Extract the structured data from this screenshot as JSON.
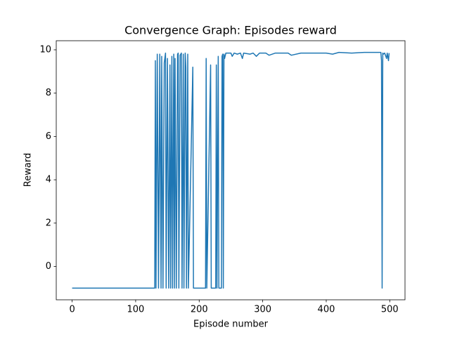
{
  "chart_data": {
    "type": "line",
    "title": "Convergence Graph: Episodes reward",
    "xlabel": "Episode number",
    "ylabel": "Reward",
    "color": "#1f77b4",
    "grid": false,
    "x": [
      0,
      130,
      131,
      132,
      134,
      136,
      138,
      140,
      141,
      143,
      145,
      147,
      148,
      150,
      152,
      154,
      155,
      157,
      158,
      160,
      161,
      162,
      164,
      166,
      167,
      168,
      170,
      172,
      173,
      175,
      176,
      178,
      179,
      180,
      182,
      183,
      190,
      191,
      210,
      211,
      212,
      218,
      219,
      226,
      227,
      228,
      230,
      231,
      235,
      236,
      237,
      238,
      239,
      240,
      242,
      250,
      252,
      255,
      260,
      265,
      268,
      270,
      280,
      285,
      290,
      295,
      305,
      310,
      320,
      340,
      345,
      360,
      400,
      410,
      420,
      440,
      460,
      486,
      487,
      488,
      489,
      490,
      492,
      495,
      496,
      498,
      499
    ],
    "values": [
      -1,
      -1,
      9.5,
      -1,
      9.8,
      -1,
      9.8,
      -1,
      9.7,
      -1,
      9.4,
      9.85,
      -1,
      9.6,
      -1,
      9.3,
      -1,
      9.7,
      -1,
      9.8,
      -1,
      9.6,
      -1,
      9.8,
      9.85,
      -1,
      9.75,
      9.85,
      -1,
      9.8,
      -1,
      9.85,
      9.2,
      -1,
      9.8,
      -1,
      9.2,
      -1,
      -1,
      9.6,
      -1,
      9.3,
      -1,
      -1,
      9.3,
      -1,
      9.7,
      -1,
      -1,
      9.7,
      9.8,
      -1,
      9.8,
      9.6,
      9.85,
      9.85,
      9.7,
      9.85,
      9.8,
      9.85,
      9.6,
      9.85,
      9.8,
      9.85,
      9.7,
      9.85,
      9.85,
      9.75,
      9.85,
      9.85,
      9.75,
      9.85,
      9.85,
      9.8,
      9.88,
      9.85,
      9.88,
      9.88,
      9.5,
      -1,
      9.85,
      9.8,
      9.85,
      9.6,
      9.85,
      9.5,
      9.85
    ],
    "xlim": [
      -25,
      524
    ],
    "ylim": [
      -1.54,
      10.42
    ],
    "xticks": [
      0,
      100,
      200,
      300,
      400,
      500
    ],
    "yticks": [
      0,
      2,
      4,
      6,
      8,
      10
    ]
  }
}
